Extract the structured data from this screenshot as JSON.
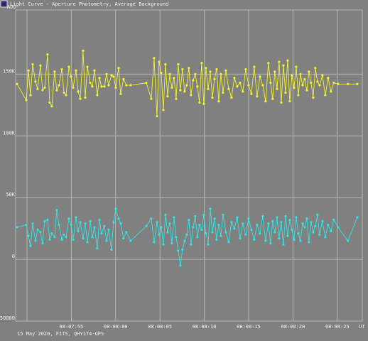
{
  "chart_data": {
    "type": "line",
    "title": "Light Curve - Aperture Photometry, Average Background",
    "y_label": "ADU",
    "x_label": "UT",
    "footnote": "15 May 2020, FITS, QHY174-GPS",
    "grid": true,
    "ylim": [
      -50000,
      202000
    ],
    "yticks": [
      -50000,
      0,
      {
        "value": 50000,
        "label": "50K"
      },
      {
        "value": 100000,
        "label": "100K"
      },
      {
        "value": 150000,
        "label": "150K"
      }
    ],
    "xlim": [
      29268.72,
      29307.82
    ],
    "xticks": [
      {
        "value": 29270,
        "label": null
      },
      {
        "value": 29275,
        "label": "08:07:55"
      },
      {
        "value": 29280,
        "label": "08:08:00"
      },
      {
        "value": 29285,
        "label": "08:08:05"
      },
      {
        "value": 29290,
        "label": "08:08:10"
      },
      {
        "value": 29295,
        "label": "08:08:15"
      },
      {
        "value": 29300,
        "label": "08:08:20"
      },
      {
        "value": 29305,
        "label": "08:08:25"
      }
    ],
    "x": [
      29268.88,
      29269.92,
      29270.16,
      29270.4,
      29270.64,
      29270.96,
      29271.2,
      29271.52,
      29271.76,
      29272.0,
      29272.32,
      29272.56,
      29272.8,
      29273.12,
      29273.36,
      29273.6,
      29273.93,
      29274.17,
      29274.41,
      29274.73,
      29274.97,
      29275.21,
      29275.53,
      29275.77,
      29276.01,
      29276.33,
      29276.57,
      29276.81,
      29277.13,
      29277.37,
      29277.61,
      29277.93,
      29278.17,
      29278.41,
      29278.73,
      29278.97,
      29279.21,
      29279.53,
      29279.77,
      29280.01,
      29280.33,
      29280.57,
      29280.89,
      29281.21,
      29281.69,
      29283.46,
      29284.02,
      29284.34,
      29284.66,
      29284.9,
      29285.14,
      29285.38,
      29285.62,
      29285.86,
      29286.1,
      29286.34,
      29286.58,
      29286.82,
      29287.06,
      29287.3,
      29287.54,
      29287.78,
      29288.02,
      29288.26,
      29288.5,
      29288.74,
      29288.98,
      29289.22,
      29289.46,
      29289.7,
      29289.94,
      29290.18,
      29290.43,
      29290.67,
      29290.91,
      29291.15,
      29291.39,
      29291.63,
      29291.87,
      29292.11,
      29292.43,
      29292.75,
      29293.07,
      29293.39,
      29293.71,
      29294.03,
      29294.35,
      29294.67,
      29294.99,
      29295.31,
      29295.63,
      29295.95,
      29296.27,
      29296.59,
      29296.91,
      29297.23,
      29297.47,
      29297.71,
      29297.95,
      29298.2,
      29298.44,
      29298.68,
      29298.92,
      29299.16,
      29299.4,
      29299.64,
      29299.88,
      29300.12,
      29300.36,
      29300.6,
      29300.84,
      29301.08,
      29301.32,
      29301.56,
      29301.8,
      29302.04,
      29302.28,
      29302.52,
      29302.76,
      29303.0,
      29303.32,
      29303.64,
      29303.96,
      29304.28,
      29304.6,
      29305.08,
      29306.2,
      29307.25
    ],
    "series": [
      {
        "color": "#f4f42a",
        "values": [
          142000,
          129000,
          153000,
          133000,
          158000,
          144000,
          138000,
          157000,
          137000,
          139000,
          166000,
          127000,
          124000,
          152000,
          137000,
          141000,
          154000,
          135000,
          133000,
          156000,
          148000,
          139000,
          153000,
          136000,
          130000,
          169000,
          131000,
          156000,
          143000,
          140000,
          153000,
          133000,
          147000,
          140000,
          140000,
          150000,
          141000,
          149000,
          148000,
          139000,
          155000,
          134000,
          146000,
          141000,
          141000,
          143000,
          130000,
          163000,
          116000,
          160000,
          151000,
          121000,
          158000,
          132000,
          150000,
          139000,
          147000,
          130000,
          158000,
          137000,
          154000,
          136000,
          141000,
          155000,
          133000,
          145000,
          150000,
          140000,
          127000,
          159000,
          126000,
          155000,
          138000,
          152000,
          131000,
          146000,
          154000,
          128000,
          150000,
          135000,
          153000,
          138000,
          131000,
          147000,
          140000,
          143000,
          136000,
          154000,
          141000,
          134000,
          156000,
          132000,
          148000,
          141000,
          128000,
          159000,
          143000,
          130000,
          152000,
          138000,
          160000,
          127000,
          157000,
          135000,
          161000,
          128000,
          149000,
          139000,
          156000,
          133000,
          150000,
          141000,
          146000,
          137000,
          152000,
          143000,
          131000,
          155000,
          144000,
          141000,
          149000,
          133000,
          147000,
          136000,
          143000,
          142000,
          142000,
          142000
        ]
      },
      {
        "color": "#2ee6e6",
        "values": [
          26000,
          28000,
          19000,
          11000,
          29000,
          15000,
          24000,
          22000,
          13000,
          31000,
          32000,
          16000,
          21000,
          18000,
          40000,
          28000,
          16000,
          20000,
          18000,
          33000,
          28000,
          16000,
          34000,
          23000,
          30000,
          17000,
          29000,
          14000,
          31000,
          18000,
          26000,
          9000,
          32000,
          21000,
          27000,
          15000,
          24000,
          8000,
          30000,
          41000,
          33000,
          29000,
          17000,
          22000,
          15000,
          27000,
          33000,
          14000,
          30000,
          20000,
          26000,
          12000,
          36000,
          22000,
          29000,
          13000,
          34000,
          18000,
          7000,
          -5000,
          8000,
          15000,
          20000,
          32000,
          12000,
          26000,
          35000,
          18000,
          28000,
          24000,
          36000,
          21000,
          12000,
          41000,
          22000,
          33000,
          16000,
          28000,
          19000,
          36000,
          22000,
          14000,
          30000,
          25000,
          34000,
          17000,
          29000,
          20000,
          33000,
          24000,
          16000,
          28000,
          21000,
          35000,
          15000,
          29000,
          13000,
          31000,
          22000,
          34000,
          17000,
          30000,
          12000,
          35000,
          19000,
          32000,
          24000,
          16000,
          34000,
          21000,
          15000,
          29000,
          26000,
          33000,
          14000,
          30000,
          22000,
          27000,
          36000,
          20000,
          31000,
          18000,
          28000,
          23000,
          32000,
          26000,
          15000,
          34000
        ]
      }
    ]
  }
}
